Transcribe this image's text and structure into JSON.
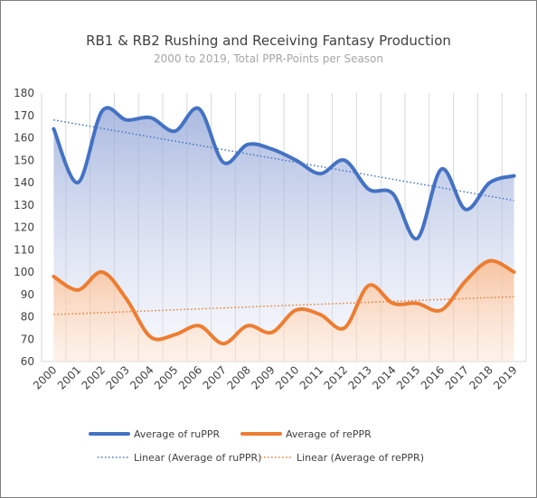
{
  "chart_data": {
    "type": "line",
    "title": "RB1 & RB2 Rushing and Receiving Fantasy Production",
    "subtitle": "2000 to 2019, Total PPR-Points per Season",
    "categories": [
      "2000",
      "2001",
      "2002",
      "2003",
      "2004",
      "2005",
      "2006",
      "2007",
      "2008",
      "2009",
      "2010",
      "2011",
      "2012",
      "2013",
      "2014",
      "2015",
      "2016",
      "2017",
      "2018",
      "2019"
    ],
    "ylim": [
      60,
      180
    ],
    "yticks": [
      60,
      70,
      80,
      90,
      100,
      110,
      120,
      130,
      140,
      150,
      160,
      170,
      180
    ],
    "grid": "vertical",
    "legend_position": "bottom",
    "series": [
      {
        "name": "Average of ruPPR",
        "color": "#4472c4",
        "values": [
          164,
          140,
          172,
          168,
          169,
          163,
          173,
          149,
          157,
          155,
          150,
          144,
          150,
          137,
          135,
          115,
          146,
          128,
          140,
          143
        ]
      },
      {
        "name": "Average of rePPR",
        "color": "#ed7d31",
        "values": [
          98,
          92,
          100,
          88,
          71,
          72,
          76,
          68,
          76,
          73,
          83,
          81,
          75,
          94,
          86,
          86,
          83,
          96,
          105,
          100
        ]
      }
    ],
    "trendlines": [
      {
        "name": "Linear (Average of ruPPR)",
        "color": "#4472c4",
        "start": 168,
        "end": 132
      },
      {
        "name": "Linear (Average of rePPR)",
        "color": "#ed7d31",
        "start": 81,
        "end": 89
      }
    ]
  }
}
